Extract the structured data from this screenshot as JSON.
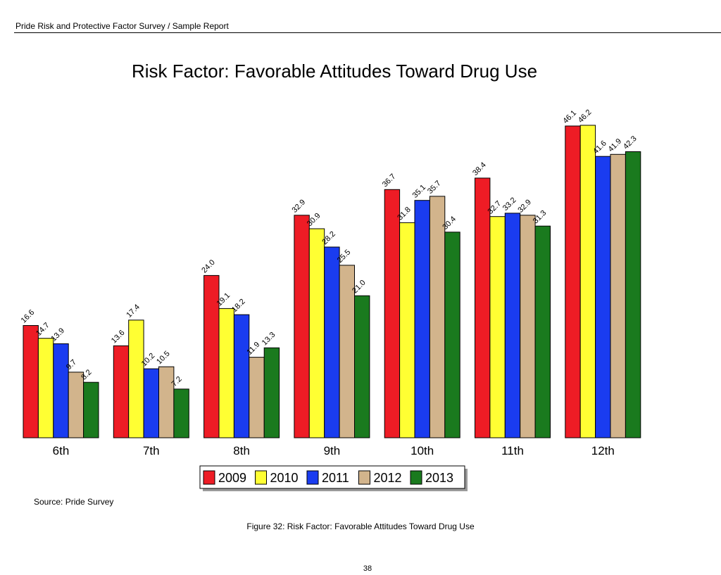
{
  "header": {
    "text": "Pride Risk and Protective Factor Survey / Sample Report"
  },
  "chart_data": {
    "type": "bar",
    "title": "Risk Factor: Favorable Attitudes Toward Drug Use",
    "categories": [
      "6th",
      "7th",
      "8th",
      "9th",
      "10th",
      "11th",
      "12th"
    ],
    "series": [
      {
        "name": "2009",
        "color": "#ee1c25",
        "values": [
          16.6,
          13.6,
          24.0,
          32.9,
          36.7,
          38.4,
          46.1
        ],
        "labels": [
          "16.6",
          "13.6",
          "24.0",
          "32.9",
          "36.7",
          "38.4",
          "46.1"
        ]
      },
      {
        "name": "2010",
        "color": "#ffff33",
        "values": [
          14.7,
          17.4,
          19.1,
          30.9,
          31.8,
          32.7,
          46.2
        ],
        "labels": [
          "14.7",
          "17.4",
          "19.1",
          "30.9",
          "31.8",
          "32.7",
          "46.2"
        ]
      },
      {
        "name": "2011",
        "color": "#1a3cf0",
        "values": [
          13.9,
          10.2,
          18.2,
          28.2,
          35.1,
          33.2,
          41.6
        ],
        "labels": [
          "13.9",
          "10.2",
          "18.2",
          "28.2",
          "35.1",
          "33.2",
          "41.6"
        ]
      },
      {
        "name": "2012",
        "color": "#d2b48c",
        "values": [
          9.7,
          10.5,
          11.9,
          25.5,
          35.7,
          32.9,
          41.9
        ],
        "labels": [
          "9.7",
          "10.5",
          "11.9",
          "25.5",
          "35.7",
          "32.9",
          "41.9"
        ]
      },
      {
        "name": "2013",
        "color": "#1a7a1e",
        "values": [
          8.2,
          7.2,
          13.3,
          21.0,
          30.4,
          31.3,
          42.3
        ],
        "labels": [
          "8.2",
          "7.2",
          "13.3",
          "21.0",
          "30.4",
          "31.3",
          "42.3"
        ]
      }
    ],
    "ylim": [
      0,
      46.2
    ],
    "grid": false,
    "legend_position": "bottom-center"
  },
  "source": "Source: Pride Survey",
  "caption": "Figure 32: Risk Factor: Favorable Attitudes Toward Drug Use",
  "page_number": "38"
}
